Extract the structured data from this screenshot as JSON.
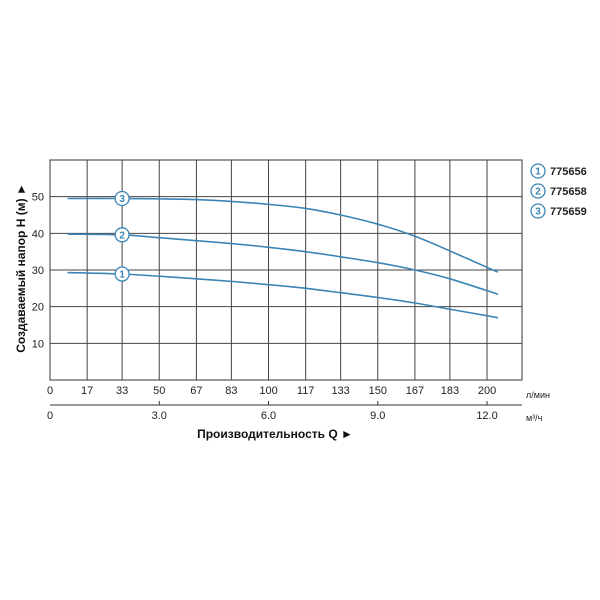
{
  "chart_data": {
    "type": "line",
    "xlabel": "Производительность Q ►",
    "ylabel": "Создаваемый напор H (м) ►",
    "x_unit": "л/мин",
    "x2_unit": "м³/ч",
    "xlim": [
      0,
      216
    ],
    "ylim": [
      0,
      60
    ],
    "x_ticks": [
      0,
      17,
      33,
      50,
      67,
      83,
      100,
      117,
      133,
      150,
      167,
      183,
      200
    ],
    "x_tick_labels": [
      "0",
      "17",
      "33",
      "50",
      "67",
      "83",
      "100",
      "117",
      "133",
      "150",
      "167",
      "183",
      "200"
    ],
    "x2_ticks": [
      0,
      3.0,
      6.0,
      9.0,
      12.0
    ],
    "x2_tick_labels": [
      "0",
      "3.0",
      "6.0",
      "9.0",
      "12.0"
    ],
    "y_ticks": [
      10,
      20,
      30,
      40,
      50
    ],
    "y_tick_labels": [
      "10",
      "20",
      "30",
      "40",
      "50"
    ],
    "grid": true,
    "legend_position": "right",
    "line_color": "#3a85b5",
    "series": [
      {
        "name": "775656",
        "marker": "1",
        "x": [
          8,
          33,
          50,
          67,
          83,
          100,
          117,
          133,
          150,
          167,
          183,
          205
        ],
        "y": [
          29.3,
          28.9,
          28.3,
          27.6,
          26.9,
          26.0,
          25.0,
          23.8,
          22.5,
          21.0,
          19.3,
          17.0
        ]
      },
      {
        "name": "775658",
        "marker": "2",
        "x": [
          8,
          33,
          50,
          67,
          83,
          100,
          117,
          133,
          150,
          167,
          183,
          205
        ],
        "y": [
          39.8,
          39.6,
          38.8,
          38.0,
          37.2,
          36.2,
          35.0,
          33.6,
          32.0,
          30.0,
          27.6,
          23.4
        ]
      },
      {
        "name": "775659",
        "marker": "3",
        "x": [
          8,
          33,
          50,
          67,
          83,
          100,
          117,
          133,
          150,
          167,
          183,
          205
        ],
        "y": [
          49.5,
          49.5,
          49.4,
          49.2,
          48.7,
          47.9,
          46.8,
          45.0,
          42.5,
          39.2,
          35.2,
          29.4
        ]
      }
    ],
    "marker_at_x": 33
  }
}
